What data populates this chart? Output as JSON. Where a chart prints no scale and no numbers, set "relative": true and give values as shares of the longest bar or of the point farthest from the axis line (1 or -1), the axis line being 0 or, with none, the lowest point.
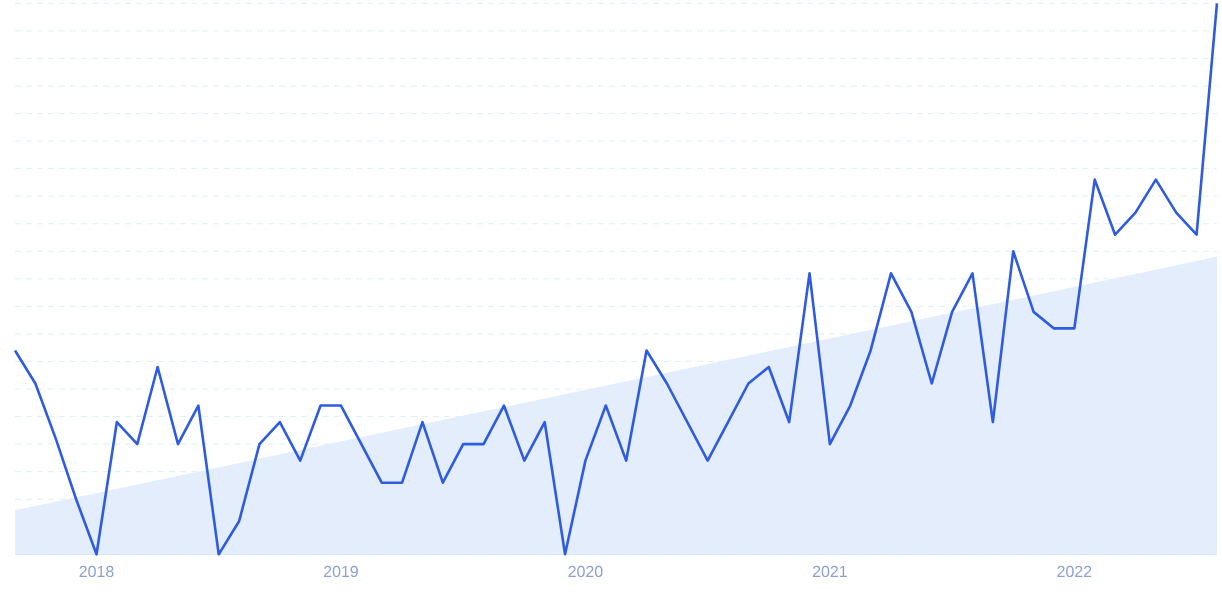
{
  "chart_data": {
    "type": "line",
    "relative": true,
    "grid": "y",
    "marker": "none",
    "line_style": "solid",
    "xlim": [
      "2017-09",
      "2022-08"
    ],
    "xticks": [
      "2018",
      "2019",
      "2020",
      "2021",
      "2022"
    ],
    "series": [
      {
        "type": "area",
        "color": "#e3edfb",
        "x": [
          "2017-09",
          "2022-08"
        ],
        "values": [
          0.08,
          0.54
        ]
      },
      {
        "color": "#2f5be0",
        "x": [
          "2017-09",
          "2017-10",
          "2017-11",
          "2017-12",
          "2018-01",
          "2018-02",
          "2018-03",
          "2018-04",
          "2018-05",
          "2018-06",
          "2018-07",
          "2018-08",
          "2018-09",
          "2018-10",
          "2018-11",
          "2018-12",
          "2019-01",
          "2019-02",
          "2019-03",
          "2019-04",
          "2019-05",
          "2019-06",
          "2019-07",
          "2019-08",
          "2019-09",
          "2019-10",
          "2019-11",
          "2019-12",
          "2020-01",
          "2020-02",
          "2020-03",
          "2020-04",
          "2020-05",
          "2020-06",
          "2020-07",
          "2020-08",
          "2020-09",
          "2020-10",
          "2020-11",
          "2020-12",
          "2021-01",
          "2021-02",
          "2021-03",
          "2021-04",
          "2021-05",
          "2021-06",
          "2021-07",
          "2021-08",
          "2021-09",
          "2021-10",
          "2021-11",
          "2021-12",
          "2022-01",
          "2022-02",
          "2022-03",
          "2022-04",
          "2022-05",
          "2022-06",
          "2022-07",
          "2022-08"
        ],
        "values": [
          0.37,
          0.31,
          0.21,
          0.1,
          0,
          0.24,
          0.2,
          0.34,
          0.2,
          0.27,
          0,
          0.06,
          0.2,
          0.24,
          0.17,
          0.27,
          0.27,
          0.2,
          0.13,
          0.13,
          0.24,
          0.13,
          0.2,
          0.2,
          0.27,
          0.17,
          0.24,
          0,
          0.17,
          0.27,
          0.17,
          0.37,
          0.31,
          0.24,
          0.17,
          0.24,
          0.31,
          0.34,
          0.24,
          0.51,
          0.2,
          0.27,
          0.37,
          0.51,
          0.44,
          0.31,
          0.44,
          0.51,
          0.24,
          0.55,
          0.44,
          0.41,
          0.41,
          0.68,
          0.58,
          0.62,
          0.68,
          0.62,
          0.58,
          1
        ]
      }
    ]
  }
}
